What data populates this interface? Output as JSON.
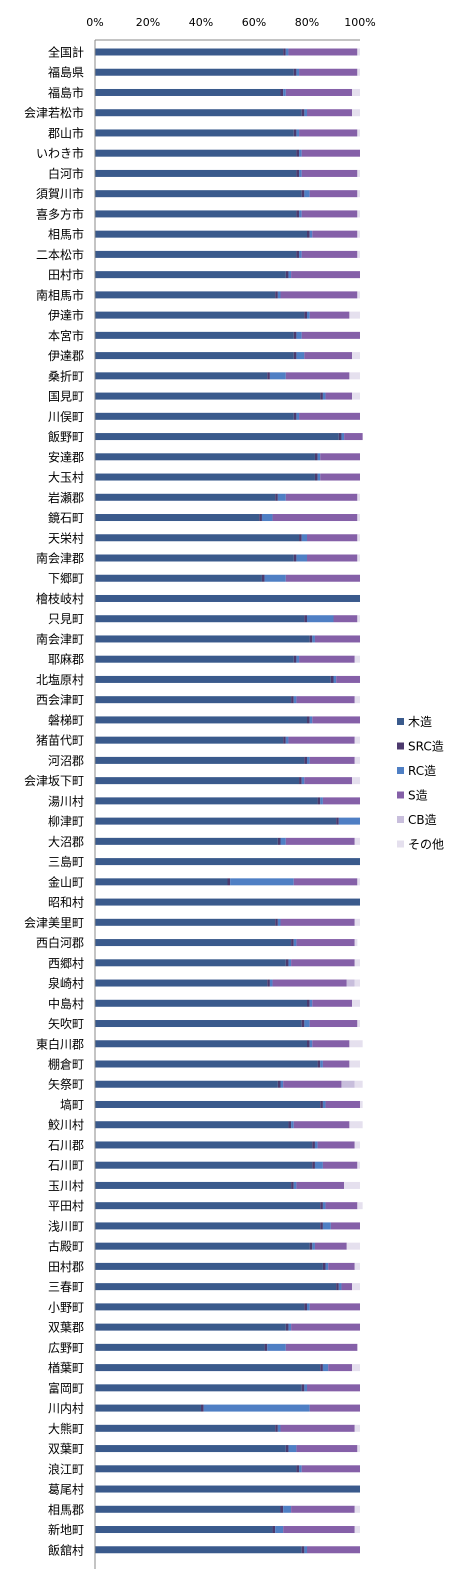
{
  "chart_data": {
    "type": "bar",
    "orientation": "horizontal",
    "stacked": "percent",
    "xlim": [
      0,
      100
    ],
    "x_ticks": [
      "0%",
      "20%",
      "40%",
      "60%",
      "80%",
      "100%"
    ],
    "grid": false,
    "legend_position": "right",
    "categories": [
      "全国計",
      "福島県",
      "福島市",
      "会津若松市",
      "郡山市",
      "いわき市",
      "白河市",
      "須賀川市",
      "喜多方市",
      "相馬市",
      "二本松市",
      "田村市",
      "南相馬市",
      "伊達市",
      "本宮市",
      "伊達郡",
      "桑折町",
      "国見町",
      "川俣町",
      "飯野町",
      "安達郡",
      "大玉村",
      "岩瀬郡",
      "鏡石町",
      "天栄村",
      "南会津郡",
      "下郷町",
      "檜枝岐村",
      "只見町",
      "南会津町",
      "耶麻郡",
      "北塩原村",
      "西会津町",
      "磐梯町",
      "猪苗代町",
      "河沼郡",
      "会津坂下町",
      "湯川村",
      "柳津町",
      "大沼郡",
      "三島町",
      "金山町",
      "昭和村",
      "会津美里町",
      "西白河郡",
      "西郷村",
      "泉崎村",
      "中島村",
      "矢吹町",
      "東白川郡",
      "棚倉町",
      "矢祭町",
      "塙町",
      "鮫川村",
      "石川郡",
      "石川町",
      "玉川村",
      "平田村",
      "浅川町",
      "古殿町",
      "田村郡",
      "三春町",
      "小野町",
      "双葉郡",
      "広野町",
      "楢葉町",
      "富岡町",
      "川内村",
      "大熊町",
      "双葉町",
      "浪江町",
      "葛尾村",
      "相馬郡",
      "新地町",
      "飯舘村"
    ],
    "series": [
      {
        "name": "木造",
        "color": "#3a5a8c",
        "values": [
          71,
          75,
          70,
          78,
          75,
          76,
          76,
          78,
          76,
          80,
          76,
          72,
          68,
          79,
          75,
          75,
          65,
          85,
          75,
          92,
          83,
          83,
          68,
          62,
          77,
          75,
          63,
          100,
          79,
          81,
          75,
          89,
          74,
          80,
          71,
          79,
          77,
          84,
          91,
          69,
          100,
          50,
          100,
          68,
          74,
          72,
          65,
          80,
          78,
          80,
          84,
          69,
          85,
          73,
          82,
          82,
          74,
          85,
          85,
          81,
          86,
          91,
          79,
          72,
          64,
          85,
          78,
          40,
          68,
          72,
          76,
          100,
          70,
          67,
          78
        ]
      },
      {
        "name": "SRC造",
        "color": "#4d3a6e",
        "values": [
          1,
          1,
          1,
          1,
          1,
          1,
          1,
          1,
          1,
          1,
          1,
          1,
          1,
          1,
          1,
          1,
          1,
          1,
          1,
          1,
          1,
          1,
          1,
          1,
          1,
          1,
          1,
          0,
          1,
          1,
          1,
          1,
          1,
          1,
          1,
          1,
          1,
          1,
          1,
          1,
          0,
          1,
          0,
          1,
          1,
          1,
          1,
          1,
          1,
          1,
          1,
          1,
          1,
          1,
          1,
          1,
          1,
          1,
          1,
          1,
          1,
          1,
          1,
          1,
          1,
          1,
          1,
          1,
          1,
          1,
          1,
          0,
          1,
          1,
          1
        ]
      },
      {
        "name": "RC造",
        "color": "#4f7fc4",
        "values": [
          1,
          1,
          1,
          1,
          1,
          1,
          1,
          2,
          1,
          1,
          1,
          1,
          1,
          1,
          2,
          3,
          6,
          1,
          1,
          1,
          1,
          1,
          3,
          4,
          2,
          4,
          8,
          0,
          10,
          1,
          1,
          1,
          1,
          1,
          1,
          1,
          1,
          1,
          8,
          2,
          0,
          24,
          0,
          1,
          1,
          1,
          1,
          1,
          2,
          1,
          1,
          1,
          1,
          1,
          1,
          3,
          1,
          1,
          3,
          1,
          1,
          1,
          1,
          1,
          7,
          2,
          1,
          40,
          1,
          3,
          1,
          0,
          3,
          3,
          1
        ]
      },
      {
        "name": "S造",
        "color": "#8560a8",
        "values": [
          26,
          22,
          25,
          17,
          22,
          22,
          21,
          18,
          21,
          17,
          21,
          26,
          29,
          15,
          22,
          18,
          24,
          10,
          23,
          7,
          15,
          15,
          27,
          32,
          19,
          19,
          28,
          0,
          9,
          17,
          21,
          9,
          22,
          18,
          25,
          17,
          18,
          14,
          0,
          26,
          0,
          24,
          0,
          28,
          22,
          24,
          28,
          15,
          18,
          14,
          10,
          22,
          13,
          21,
          14,
          13,
          18,
          12,
          11,
          12,
          10,
          4,
          19,
          26,
          27,
          9,
          20,
          19,
          28,
          23,
          22,
          0,
          24,
          27,
          20
        ]
      },
      {
        "name": "CB造",
        "color": "#c8bedc",
        "values": [
          0,
          0,
          0,
          0,
          0,
          0,
          0,
          0,
          0,
          0,
          0,
          0,
          0,
          0,
          0,
          0,
          0,
          0,
          0,
          0,
          0,
          0,
          0,
          0,
          0,
          0,
          0,
          0,
          0,
          0,
          0,
          0,
          0,
          0,
          0,
          0,
          0,
          0,
          0,
          0,
          0,
          0,
          0,
          0,
          0,
          0,
          3,
          0,
          0,
          0,
          0,
          5,
          0,
          0,
          0,
          0,
          0,
          0,
          0,
          0,
          0,
          0,
          0,
          0,
          0,
          0,
          0,
          0,
          0,
          0,
          0,
          0,
          0,
          0,
          0
        ]
      },
      {
        "name": "その他",
        "color": "#e5e0ee",
        "values": [
          1,
          1,
          3,
          3,
          1,
          0,
          1,
          1,
          1,
          1,
          1,
          0,
          1,
          4,
          0,
          3,
          4,
          3,
          0,
          0,
          0,
          0,
          1,
          1,
          1,
          1,
          0,
          0,
          1,
          0,
          2,
          0,
          2,
          0,
          2,
          2,
          3,
          0,
          0,
          2,
          0,
          1,
          0,
          2,
          1,
          2,
          2,
          3,
          1,
          5,
          4,
          3,
          1,
          5,
          2,
          1,
          6,
          2,
          0,
          5,
          2,
          3,
          0,
          0,
          0,
          3,
          0,
          0,
          2,
          1,
          0,
          0,
          2,
          2,
          0
        ]
      }
    ]
  }
}
